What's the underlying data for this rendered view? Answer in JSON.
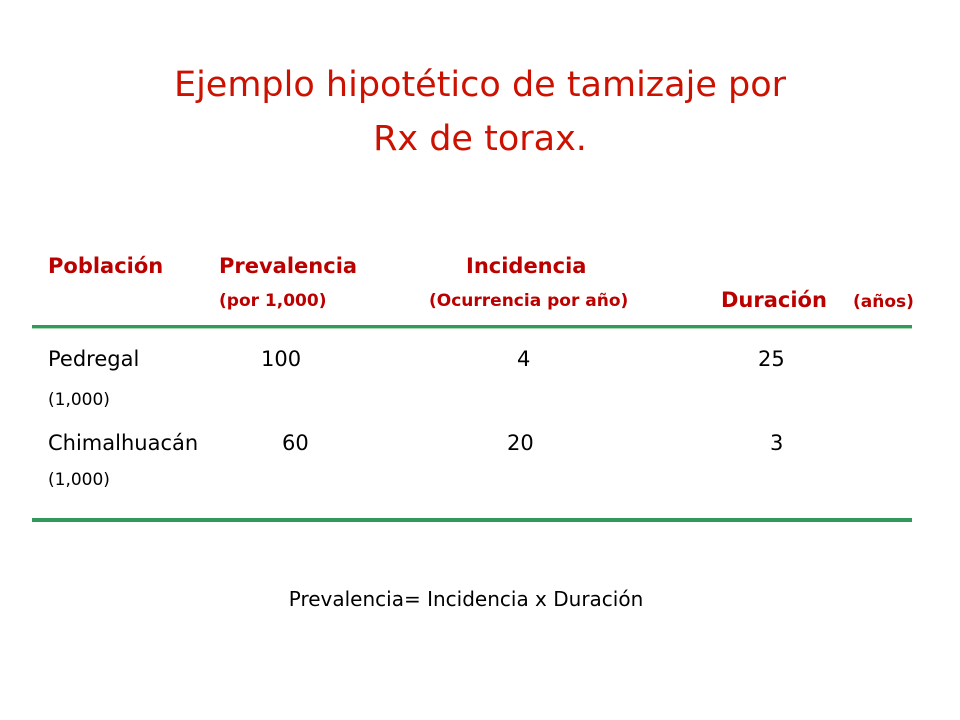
{
  "title": {
    "line1": "Ejemplo hipotético de tamizaje por",
    "line2": "Rx de torax."
  },
  "table": {
    "headers": {
      "poblacion": "Población",
      "prevalencia": "Prevalencia",
      "prevalencia_sub": "(por 1,000)",
      "incidencia": "Incidencia",
      "incidencia_sub": "(Ocurrencia por año)",
      "duracion": "Duración",
      "duracion_sub": "(años)"
    },
    "rows": [
      {
        "poblacion": "Pedregal",
        "poblacion_sub": "(1,000)",
        "prevalencia": "100",
        "incidencia": "4",
        "duracion": "25"
      },
      {
        "poblacion": "Chimalhuacán",
        "poblacion_sub": "(1,000)",
        "prevalencia": "60",
        "incidencia": "20",
        "duracion": "3"
      }
    ]
  },
  "formula": "Prevalencia= Incidencia x Duración",
  "colors": {
    "title": "#cc1100",
    "header": "#bb0000",
    "rule": "#2f9a5a"
  }
}
